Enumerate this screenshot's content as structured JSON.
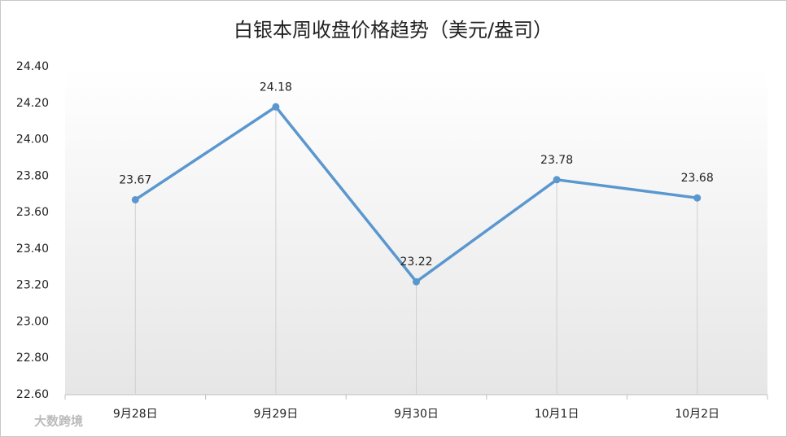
{
  "chart_data": {
    "type": "line",
    "title": "白银本周收盘价格趋势（美元/盎司）",
    "categories": [
      "9月28日",
      "9月29日",
      "9月30日",
      "10月1日",
      "10月2日"
    ],
    "values": [
      23.67,
      24.18,
      23.22,
      23.78,
      23.68
    ],
    "color": "#5b97cf",
    "drop_lines": true,
    "grid": false,
    "ylim": [
      22.6,
      24.4
    ],
    "yticks": [
      {
        "value": 22.6,
        "label": "22.60"
      },
      {
        "value": 22.8,
        "label": "22.80"
      },
      {
        "value": 23.0,
        "label": "23.00"
      },
      {
        "value": 23.2,
        "label": "23.20"
      },
      {
        "value": 23.4,
        "label": "23.40"
      },
      {
        "value": 23.6,
        "label": "23.60"
      },
      {
        "value": 23.8,
        "label": "23.80"
      },
      {
        "value": 24.0,
        "label": "24.00"
      },
      {
        "value": 24.2,
        "label": "24.20"
      },
      {
        "value": 24.4,
        "label": "24.40"
      }
    ],
    "watermark": "大数跨境"
  }
}
